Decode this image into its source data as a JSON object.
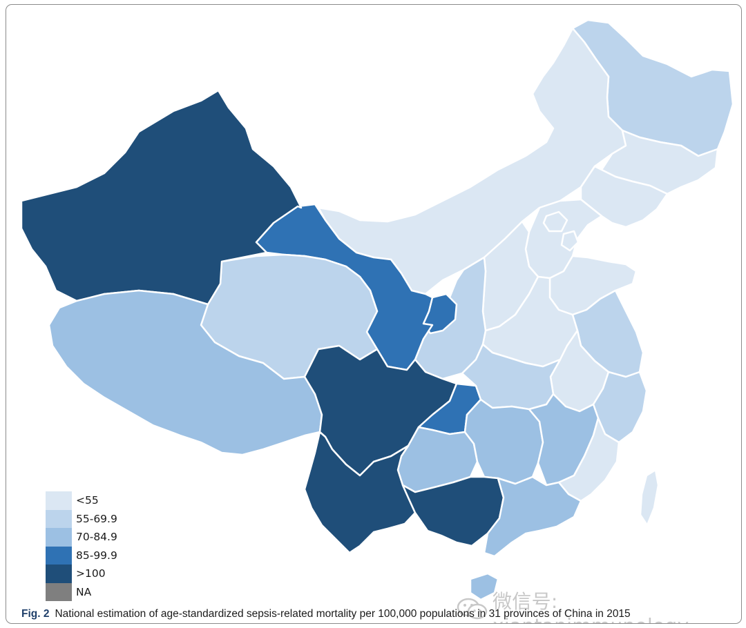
{
  "map": {
    "colors": {
      "lt55": "#dbe7f3",
      "55_69_9": "#bcd4ec",
      "70_84_9": "#9cc0e3",
      "85_99_9": "#2f72b4",
      "gt100": "#1f4e79",
      "na": "#7f7f7f",
      "border": "#ffffff"
    }
  },
  "legend": {
    "items": [
      {
        "label": "<55",
        "color": "#dbe7f3"
      },
      {
        "label": "55-69.9",
        "color": "#bcd4ec"
      },
      {
        "label": "70-84.9",
        "color": "#9cc0e3"
      },
      {
        "label": "85-99.9",
        "color": "#2f72b4"
      },
      {
        "label": ">100",
        "color": "#1f4e79"
      },
      {
        "label": "NA",
        "color": "#7f7f7f"
      }
    ]
  },
  "watermark": {
    "icon": "wechat-icon",
    "text": "微信号: xiantanimmunology"
  },
  "caption": {
    "label": "Fig. 2",
    "text": "National estimation of age-standardized sepsis-related mortality per 100,000 populations in 31 provinces of China in 2015"
  }
}
